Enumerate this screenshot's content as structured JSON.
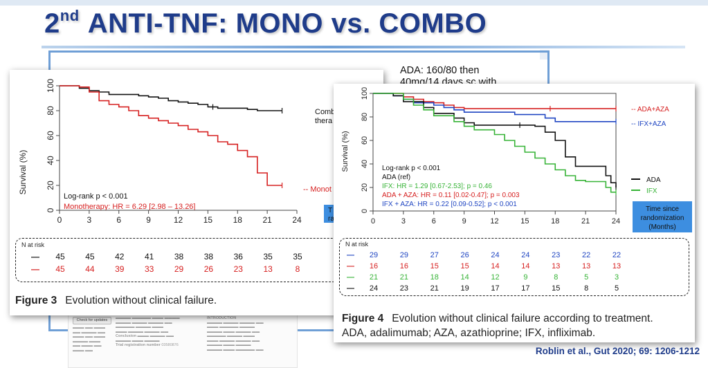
{
  "slide": {
    "title_sup": "nd",
    "title_num": "2",
    "title_rest": " ANTI-TNF: MONO vs. COMBO",
    "ada_note_lines": [
      "ADA: 160/80 then",
      "40mg/14 days sc with"
    ],
    "citation": "Roblin et al., Gut 2020; 69: 1206-1212",
    "title_color": "#1f3c8a",
    "accent_color": "#6f9fd6"
  },
  "paper_background": {
    "check_updates_label": "Check for updates",
    "introduction_heading": "INTRODUCTION",
    "conclusion_label": "Conclusion",
    "trial_registration": "Trial registration number",
    "trial_number": "03580876"
  },
  "chart_data": [
    {
      "id": "figure-3",
      "type": "line",
      "ylabel": "Survival (%)",
      "xlabel": "",
      "xlim": [
        0,
        24
      ],
      "ylim": [
        0,
        100
      ],
      "xticks": [
        0,
        3,
        6,
        9,
        12,
        15,
        18,
        21,
        24
      ],
      "yticks": [
        0,
        20,
        40,
        60,
        80,
        100
      ],
      "series": [
        {
          "name": "Combo therapy",
          "label_visible": "Comb thera",
          "color": "#111111",
          "steps": [
            [
              0,
              100
            ],
            [
              2,
              98
            ],
            [
              3,
              96
            ],
            [
              4,
              95
            ],
            [
              5,
              93
            ],
            [
              7,
              93
            ],
            [
              8,
              92
            ],
            [
              9,
              91
            ],
            [
              10,
              90
            ],
            [
              11,
              88
            ],
            [
              12,
              87
            ],
            [
              13,
              86
            ],
            [
              14,
              85
            ],
            [
              15,
              83
            ],
            [
              16,
              82
            ],
            [
              18,
              82
            ],
            [
              19,
              81
            ],
            [
              20,
              80
            ],
            [
              22.5,
              80
            ]
          ],
          "censor": [
            [
              15.5,
              83
            ],
            [
              22.5,
              80
            ]
          ]
        },
        {
          "name": "Monotherapy",
          "label_visible": "-- Monot",
          "color": "#d62020",
          "steps": [
            [
              0,
              100
            ],
            [
              2,
              99
            ],
            [
              3,
              95
            ],
            [
              4,
              88
            ],
            [
              5,
              85
            ],
            [
              6,
              83
            ],
            [
              7,
              80
            ],
            [
              8,
              76
            ],
            [
              9,
              74
            ],
            [
              10,
              72
            ],
            [
              11,
              70
            ],
            [
              12,
              68
            ],
            [
              13,
              65
            ],
            [
              14,
              63
            ],
            [
              15,
              60
            ],
            [
              16,
              55
            ],
            [
              17,
              53
            ],
            [
              18,
              48
            ],
            [
              19,
              43
            ],
            [
              20,
              30
            ],
            [
              21,
              20
            ],
            [
              22.5,
              20
            ]
          ],
          "censor": [
            [
              22.5,
              20
            ]
          ]
        }
      ],
      "annotations": {
        "logrank": "Log-rank  p < 0.001",
        "hr": "Monotherapy:  HR = 6.29 [2.98 – 13.26]"
      },
      "risk_table": {
        "title": "N at risk",
        "rows": [
          {
            "marker": "—",
            "color": "#111111",
            "values": [
              "45",
              "45",
              "42",
              "41",
              "38",
              "38",
              "36",
              "35",
              "35"
            ]
          },
          {
            "marker": "—",
            "color": "#d62020",
            "values": [
              "45",
              "44",
              "39",
              "33",
              "29",
              "26",
              "23",
              "13",
              "8"
            ]
          }
        ]
      },
      "caption_label": "Figure 3",
      "caption_text": "Evolution without clinical failure."
    },
    {
      "id": "figure-4",
      "type": "line",
      "ylabel": "Survival (%)",
      "xlabel": "Time since randomization (Months)",
      "xlabel_lines": [
        "Time since",
        "randomization",
        "(Months)"
      ],
      "xlim": [
        0,
        24
      ],
      "ylim": [
        0,
        100
      ],
      "xticks": [
        0,
        3,
        6,
        9,
        12,
        15,
        18,
        21,
        24
      ],
      "yticks": [
        0,
        20,
        40,
        60,
        80,
        100
      ],
      "series": [
        {
          "name": "ADA+AZA",
          "label_visible": "-- ADA+AZA",
          "color": "#d62020",
          "steps": [
            [
              0,
              100
            ],
            [
              3,
              97
            ],
            [
              4,
              95
            ],
            [
              5,
              93
            ],
            [
              6,
              92
            ],
            [
              7,
              90
            ],
            [
              8,
              88
            ],
            [
              9,
              87
            ],
            [
              24,
              87
            ]
          ],
          "censor": [
            [
              17.5,
              87
            ],
            [
              24,
              87
            ]
          ]
        },
        {
          "name": "IFX+AZA",
          "label_visible": "-- IFX+AZA",
          "color": "#1f45c2",
          "steps": [
            [
              0,
              100
            ],
            [
              2,
              98
            ],
            [
              3,
              95
            ],
            [
              4,
              92
            ],
            [
              6,
              90
            ],
            [
              7,
              88
            ],
            [
              8,
              86
            ],
            [
              9,
              84
            ],
            [
              14,
              82
            ],
            [
              17,
              79
            ],
            [
              18,
              76
            ],
            [
              24,
              76
            ]
          ],
          "censor": [
            [
              24,
              76
            ]
          ]
        },
        {
          "name": "ADA",
          "label_visible": "ADA",
          "color": "#111111",
          "steps": [
            [
              0,
              100
            ],
            [
              2,
              98
            ],
            [
              3,
              93
            ],
            [
              5,
              88
            ],
            [
              6,
              83
            ],
            [
              8,
              79
            ],
            [
              9,
              75
            ],
            [
              10,
              73
            ],
            [
              15,
              73
            ],
            [
              16,
              72
            ],
            [
              17,
              67
            ],
            [
              18,
              60
            ],
            [
              19,
              46
            ],
            [
              20,
              38
            ],
            [
              23,
              30
            ],
            [
              23.5,
              24
            ],
            [
              24,
              20
            ]
          ],
          "censor": [
            [
              14.5,
              73
            ],
            [
              24,
              20
            ]
          ]
        },
        {
          "name": "IFX",
          "label_visible": "IFX",
          "color": "#36b336",
          "steps": [
            [
              0,
              100
            ],
            [
              3,
              95
            ],
            [
              4,
              90
            ],
            [
              5,
              86
            ],
            [
              6,
              81
            ],
            [
              8,
              76
            ],
            [
              9,
              72
            ],
            [
              10,
              69
            ],
            [
              12,
              65
            ],
            [
              13,
              60
            ],
            [
              14,
              55
            ],
            [
              15,
              50
            ],
            [
              16,
              45
            ],
            [
              17,
              40
            ],
            [
              18,
              35
            ],
            [
              19,
              30
            ],
            [
              20,
              26
            ],
            [
              21,
              25
            ],
            [
              23,
              20
            ],
            [
              23.5,
              16
            ],
            [
              24,
              16
            ]
          ],
          "censor": [
            [
              24,
              16
            ]
          ]
        }
      ],
      "annotations": [
        {
          "text": "Log-rank p < 0.001",
          "color": "#111111"
        },
        {
          "text": "ADA  (ref)",
          "color": "#111111"
        },
        {
          "text": "IFX: HR = 1.29 [0.67-2.53]; p = 0.46",
          "color": "#36b336"
        },
        {
          "text": "ADA + AZA: HR = 0.11 [0.02-0.47]; p = 0.003",
          "color": "#d62020"
        },
        {
          "text": "IFX + AZA: HR = 0.22 [0.09-0.52]; p < 0.001",
          "color": "#1f45c2"
        }
      ],
      "risk_table": {
        "title": "N at risk",
        "rows": [
          {
            "marker": "—",
            "color": "#1f45c2",
            "values": [
              "29",
              "29",
              "27",
              "26",
              "24",
              "24",
              "23",
              "22",
              "22"
            ]
          },
          {
            "marker": "—",
            "color": "#d62020",
            "values": [
              "16",
              "16",
              "15",
              "15",
              "14",
              "14",
              "13",
              "13",
              "13"
            ]
          },
          {
            "marker": "—",
            "color": "#36b336",
            "values": [
              "21",
              "21",
              "18",
              "14",
              "12",
              "9",
              "8",
              "5",
              "3"
            ]
          },
          {
            "marker": "—",
            "color": "#111111",
            "values": [
              "24",
              "23",
              "21",
              "19",
              "17",
              "17",
              "15",
              "8",
              "5"
            ]
          }
        ]
      },
      "caption_label": "Figure 4",
      "caption_text": "Evolution without clinical failure according to treatment.",
      "caption_text_2": "ADA, adalimumab; AZA, azathioprine; IFX, infliximab."
    }
  ]
}
